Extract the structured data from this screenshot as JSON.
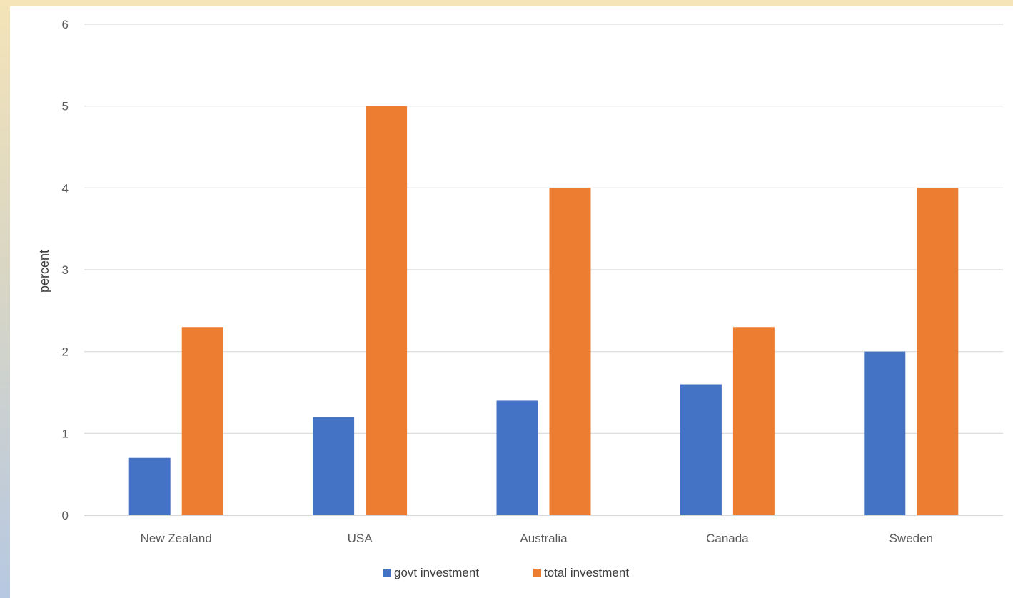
{
  "chart_data": {
    "type": "bar",
    "categories": [
      "New Zealand",
      "USA",
      "Australia",
      "Canada",
      "Sweden"
    ],
    "series": [
      {
        "name": "govt investment",
        "values": [
          0.7,
          1.2,
          1.4,
          1.6,
          2.0
        ],
        "color": "#4472c4"
      },
      {
        "name": "total investment",
        "values": [
          2.3,
          5.0,
          4.0,
          2.3,
          4.0
        ],
        "color": "#ed7d31"
      }
    ],
    "title": "",
    "xlabel": "",
    "ylabel": "percent",
    "ylim": [
      0,
      6
    ],
    "yticks": [
      "0",
      "1",
      "2",
      "3",
      "4",
      "5",
      "6"
    ],
    "grid": true,
    "legend": "bottom"
  }
}
